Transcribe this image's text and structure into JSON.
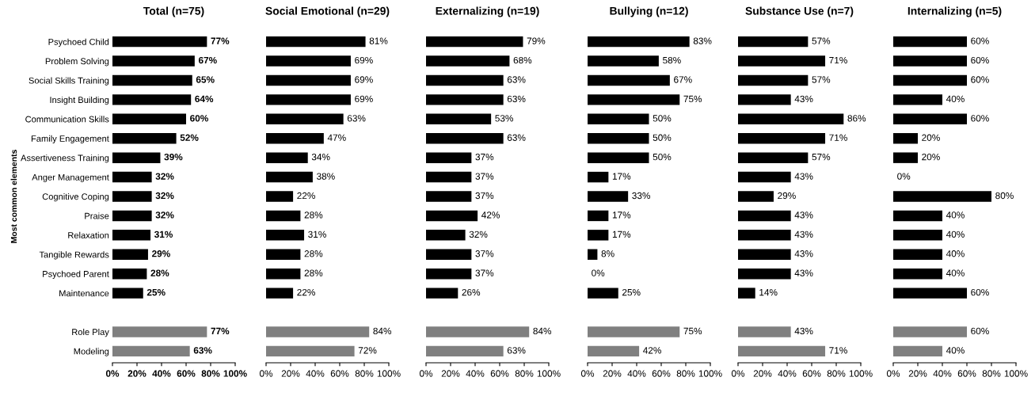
{
  "chart_data": [
    {
      "type": "bar",
      "orientation": "horizontal",
      "title": "Total (n=75)",
      "ylabel": "Most common elements",
      "categories": [
        "Psychoed Child",
        "Problem Solving",
        "Social Skills Training",
        "Insight Building",
        "Communication Skills",
        "Family Engagement",
        "Assertiveness Training",
        "Anger Management",
        "Cognitive Coping",
        "Praise",
        "Relaxation",
        "Tangible Rewards",
        "Psychoed Parent",
        "Maintenance",
        null,
        "Role Play",
        "Modeling"
      ],
      "values": [
        77,
        67,
        65,
        64,
        60,
        52,
        39,
        32,
        32,
        32,
        31,
        29,
        28,
        25,
        null,
        77,
        63
      ],
      "value_labels": [
        "77%",
        "67%",
        "65%",
        "64%",
        "60%",
        "52%",
        "39%",
        "32%",
        "32%",
        "32%",
        "31%",
        "29%",
        "28%",
        "25%",
        null,
        "77%",
        "63%"
      ],
      "colors": [
        "#000000",
        "#000000",
        "#000000",
        "#000000",
        "#000000",
        "#000000",
        "#000000",
        "#000000",
        "#000000",
        "#000000",
        "#000000",
        "#000000",
        "#000000",
        "#000000",
        null,
        "#808080",
        "#808080"
      ],
      "xlim": [
        0,
        100
      ],
      "xticks": [
        {
          "value": 0,
          "label": "0%"
        },
        {
          "value": 20,
          "label": "20%"
        },
        {
          "value": 40,
          "label": "40%"
        },
        {
          "value": 60,
          "label": "60%"
        },
        {
          "value": 80,
          "label": "80%"
        },
        {
          "value": 100,
          "label": "100%"
        }
      ]
    },
    {
      "type": "bar",
      "orientation": "horizontal",
      "title": "Social Emotional (n=29)",
      "categories": [
        null,
        null,
        null,
        null,
        null,
        null,
        null,
        null,
        null,
        null,
        null,
        null,
        null,
        null,
        null,
        null,
        null
      ],
      "values": [
        81,
        69,
        69,
        69,
        63,
        47,
        34,
        38,
        22,
        28,
        31,
        28,
        28,
        22,
        null,
        84,
        72
      ],
      "value_labels": [
        "81%",
        "69%",
        "69%",
        "69%",
        "63%",
        "47%",
        "34%",
        "38%",
        "22%",
        "28%",
        "31%",
        "28%",
        "28%",
        "22%",
        null,
        "84%",
        "72%"
      ],
      "colors": [
        "#000000",
        "#000000",
        "#000000",
        "#000000",
        "#000000",
        "#000000",
        "#000000",
        "#000000",
        "#000000",
        "#000000",
        "#000000",
        "#000000",
        "#000000",
        "#000000",
        null,
        "#808080",
        "#808080"
      ],
      "xlim": [
        0,
        100
      ],
      "xticks": [
        {
          "value": 0,
          "label": "0%"
        },
        {
          "value": 20,
          "label": "20%"
        },
        {
          "value": 40,
          "label": "40%"
        },
        {
          "value": 60,
          "label": "60%"
        },
        {
          "value": 80,
          "label": "80%"
        },
        {
          "value": 100,
          "label": "100%"
        }
      ]
    },
    {
      "type": "bar",
      "orientation": "horizontal",
      "title": "Externalizing (n=19)",
      "categories": [
        null,
        null,
        null,
        null,
        null,
        null,
        null,
        null,
        null,
        null,
        null,
        null,
        null,
        null,
        null,
        null,
        null
      ],
      "values": [
        79,
        68,
        63,
        63,
        53,
        63,
        37,
        37,
        37,
        42,
        32,
        37,
        37,
        26,
        null,
        84,
        63
      ],
      "value_labels": [
        "79%",
        "68%",
        "63%",
        "63%",
        "53%",
        "63%",
        "37%",
        "37%",
        "37%",
        "42%",
        "32%",
        "37%",
        "37%",
        "26%",
        null,
        "84%",
        "63%"
      ],
      "colors": [
        "#000000",
        "#000000",
        "#000000",
        "#000000",
        "#000000",
        "#000000",
        "#000000",
        "#000000",
        "#000000",
        "#000000",
        "#000000",
        "#000000",
        "#000000",
        "#000000",
        null,
        "#808080",
        "#808080"
      ],
      "xlim": [
        0,
        100
      ],
      "xticks": [
        {
          "value": 0,
          "label": "0%"
        },
        {
          "value": 20,
          "label": "20%"
        },
        {
          "value": 40,
          "label": "40%"
        },
        {
          "value": 60,
          "label": "60%"
        },
        {
          "value": 80,
          "label": "80%"
        },
        {
          "value": 100,
          "label": "100%"
        }
      ]
    },
    {
      "type": "bar",
      "orientation": "horizontal",
      "title": "Bullying (n=12)",
      "categories": [
        null,
        null,
        null,
        null,
        null,
        null,
        null,
        null,
        null,
        null,
        null,
        null,
        null,
        null,
        null,
        null,
        null
      ],
      "values": [
        83,
        58,
        67,
        75,
        50,
        50,
        50,
        17,
        33,
        17,
        17,
        8,
        0,
        25,
        null,
        75,
        42
      ],
      "value_labels": [
        "83%",
        "58%",
        "67%",
        "75%",
        "50%",
        "50%",
        "50%",
        "17%",
        "33%",
        "17%",
        "17%",
        "8%",
        "0%",
        "25%",
        null,
        "75%",
        "42%"
      ],
      "colors": [
        "#000000",
        "#000000",
        "#000000",
        "#000000",
        "#000000",
        "#000000",
        "#000000",
        "#000000",
        "#000000",
        "#000000",
        "#000000",
        "#000000",
        "#000000",
        "#000000",
        null,
        "#808080",
        "#808080"
      ],
      "xlim": [
        0,
        100
      ],
      "xticks": [
        {
          "value": 0,
          "label": "0%"
        },
        {
          "value": 20,
          "label": "20%"
        },
        {
          "value": 40,
          "label": "40%"
        },
        {
          "value": 60,
          "label": "60%"
        },
        {
          "value": 80,
          "label": "80%"
        },
        {
          "value": 100,
          "label": "100%"
        }
      ]
    },
    {
      "type": "bar",
      "orientation": "horizontal",
      "title": "Substance Use (n=7)",
      "categories": [
        null,
        null,
        null,
        null,
        null,
        null,
        null,
        null,
        null,
        null,
        null,
        null,
        null,
        null,
        null,
        null,
        null
      ],
      "values": [
        57,
        71,
        57,
        43,
        86,
        71,
        57,
        43,
        29,
        43,
        43,
        43,
        43,
        14,
        null,
        43,
        71
      ],
      "value_labels": [
        "57%",
        "71%",
        "57%",
        "43%",
        "86%",
        "71%",
        "57%",
        "43%",
        "29%",
        "43%",
        "43%",
        "43%",
        "43%",
        "14%",
        null,
        "43%",
        "71%"
      ],
      "colors": [
        "#000000",
        "#000000",
        "#000000",
        "#000000",
        "#000000",
        "#000000",
        "#000000",
        "#000000",
        "#000000",
        "#000000",
        "#000000",
        "#000000",
        "#000000",
        "#000000",
        null,
        "#808080",
        "#808080"
      ],
      "xlim": [
        0,
        100
      ],
      "xticks": [
        {
          "value": 0,
          "label": "0%"
        },
        {
          "value": 20,
          "label": "20%"
        },
        {
          "value": 40,
          "label": "40%"
        },
        {
          "value": 60,
          "label": "60%"
        },
        {
          "value": 80,
          "label": "80%"
        },
        {
          "value": 100,
          "label": "100%"
        }
      ]
    },
    {
      "type": "bar",
      "orientation": "horizontal",
      "title": "Internalizing (n=5)",
      "categories": [
        null,
        null,
        null,
        null,
        null,
        null,
        null,
        null,
        null,
        null,
        null,
        null,
        null,
        null,
        null,
        null,
        null
      ],
      "values": [
        60,
        60,
        60,
        40,
        60,
        20,
        20,
        0,
        80,
        40,
        40,
        40,
        40,
        60,
        null,
        60,
        40
      ],
      "value_labels": [
        "60%",
        "60%",
        "60%",
        "40%",
        "60%",
        "20%",
        "20%",
        "0%",
        "80%",
        "40%",
        "40%",
        "40%",
        "40%",
        "60%",
        null,
        "60%",
        "40%"
      ],
      "colors": [
        "#000000",
        "#000000",
        "#000000",
        "#000000",
        "#000000",
        "#000000",
        "#000000",
        "#000000",
        "#000000",
        "#000000",
        "#000000",
        "#000000",
        "#000000",
        "#000000",
        null,
        "#808080",
        "#808080"
      ],
      "xlim": [
        0,
        100
      ],
      "xticks": [
        {
          "value": 0,
          "label": "0%"
        },
        {
          "value": 20,
          "label": "20%"
        },
        {
          "value": 40,
          "label": "40%"
        },
        {
          "value": 60,
          "label": "60%"
        },
        {
          "value": 80,
          "label": "80%"
        },
        {
          "value": 100,
          "label": "100%"
        }
      ]
    }
  ]
}
